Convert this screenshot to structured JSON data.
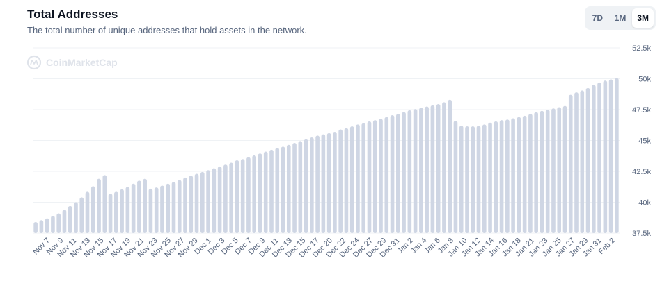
{
  "header": {
    "title": "Total Addresses",
    "subtitle": "The total number of unique addresses that hold assets in the network."
  },
  "range_selector": {
    "options": [
      "7D",
      "1M",
      "3M"
    ],
    "selected": "3M"
  },
  "watermark": {
    "text": "CoinMarketCap"
  },
  "colors": {
    "bar": "#cfd6e4",
    "grid": "#eff2f5",
    "axis_text": "#58667e",
    "title": "#0d1421"
  },
  "chart_data": {
    "type": "bar",
    "title": "Total Addresses",
    "ylim": [
      37500,
      52500
    ],
    "yticks": [
      37500,
      40000,
      42500,
      45000,
      47500,
      50000,
      52500
    ],
    "ytick_labels": [
      "37.5k",
      "40k",
      "42.5k",
      "45k",
      "47.5k",
      "50k",
      "52.5k"
    ],
    "y_axis_side": "right",
    "grid": "horizontal",
    "xtick_labels": [
      "Nov 7",
      "Nov 9",
      "Nov 11",
      "Nov 13",
      "Nov 15",
      "Nov 17",
      "Nov 19",
      "Nov 21",
      "Nov 23",
      "Nov 25",
      "Nov 27",
      "Nov 29",
      "Dec 1",
      "Dec 3",
      "Dec 5",
      "Dec 7",
      "Dec 9",
      "Dec 11",
      "Dec 13",
      "Dec 15",
      "Dec 17",
      "Dec 20",
      "Dec 22",
      "Dec 24",
      "Dec 27",
      "Dec 29",
      "Dec 31",
      "Jan 2",
      "Jan 4",
      "Jan 6",
      "Jan 8",
      "Jan 10",
      "Jan 12",
      "Jan 14",
      "Jan 16",
      "Jan 18",
      "Jan 21",
      "Jan 23",
      "Jan 25",
      "Jan 27",
      "Jan 29",
      "Jan 31",
      "Feb 2"
    ],
    "values": [
      38400,
      38550,
      38700,
      38900,
      39100,
      39400,
      39700,
      40000,
      40400,
      40850,
      41300,
      41900,
      42200,
      40700,
      40850,
      41050,
      41250,
      41500,
      41750,
      41900,
      41100,
      41200,
      41350,
      41500,
      41650,
      41800,
      42000,
      42150,
      42300,
      42450,
      42600,
      42750,
      42900,
      43050,
      43200,
      43400,
      43500,
      43650,
      43800,
      43950,
      44100,
      44250,
      44400,
      44500,
      44650,
      44800,
      44950,
      45100,
      45250,
      45400,
      45500,
      45600,
      45700,
      45900,
      46000,
      46150,
      46300,
      46400,
      46550,
      46650,
      46750,
      46900,
      47050,
      47150,
      47300,
      47450,
      47550,
      47650,
      47750,
      47850,
      47950,
      48100,
      48300,
      46600,
      46200,
      46150,
      46150,
      46200,
      46300,
      46450,
      46550,
      46650,
      46700,
      46800,
      46900,
      47000,
      47150,
      47300,
      47400,
      47500,
      47600,
      47700,
      47800,
      48700,
      48900,
      49050,
      49250,
      49500,
      49700,
      49850,
      49950,
      50050
    ]
  }
}
